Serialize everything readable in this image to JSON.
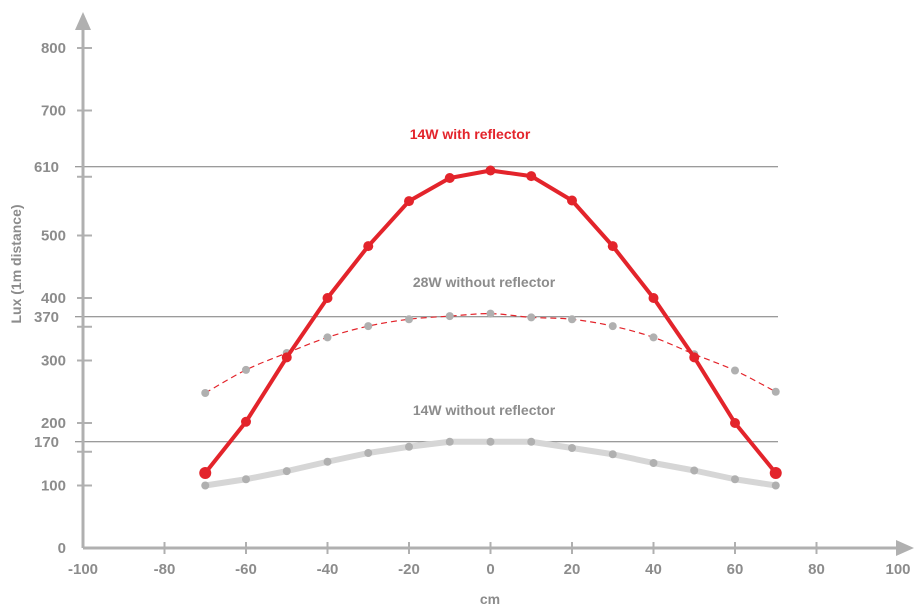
{
  "chart_data": {
    "type": "line",
    "xlabel": "cm",
    "ylabel": "Lux (1m distance)",
    "xlim": [
      -100,
      100
    ],
    "ylim": [
      0,
      800
    ],
    "x_ticks": [
      "-100",
      "-80",
      "-60",
      "-40",
      "-20",
      "0",
      "20",
      "40",
      "60",
      "80",
      "100"
    ],
    "y_ticks": [
      "0",
      "100",
      "200",
      "300",
      "400",
      "500",
      "700",
      "800"
    ],
    "reference_lines": [
      {
        "value": 610,
        "label": "610"
      },
      {
        "value": 370,
        "label": "370"
      },
      {
        "value": 170,
        "label": "170"
      }
    ],
    "x": [
      -70,
      -60,
      -50,
      -40,
      -30,
      -20,
      -10,
      0,
      10,
      20,
      30,
      40,
      50,
      60,
      70
    ],
    "series": [
      {
        "name": "14W with reflector",
        "color": "#e3242b",
        "style": "solid-thick",
        "values": [
          120,
          202,
          305,
          400,
          483,
          555,
          592,
          604,
          595,
          556,
          483,
          400,
          305,
          200,
          120
        ]
      },
      {
        "name": "28W without reflector",
        "color": "#b0b0b0",
        "line_color": "#e3242b",
        "style": "dashed-curve",
        "values": [
          248,
          285,
          312,
          337,
          355,
          366,
          371,
          375,
          369,
          366,
          355,
          337,
          310,
          284,
          250
        ]
      },
      {
        "name": "14W without reflector",
        "color": "#d6d6d6",
        "point_color": "#b0b0b0",
        "style": "solid-light",
        "values": [
          100,
          110,
          123,
          138,
          152,
          162,
          170,
          170,
          170,
          160,
          150,
          136,
          124,
          110,
          100
        ]
      }
    ]
  }
}
